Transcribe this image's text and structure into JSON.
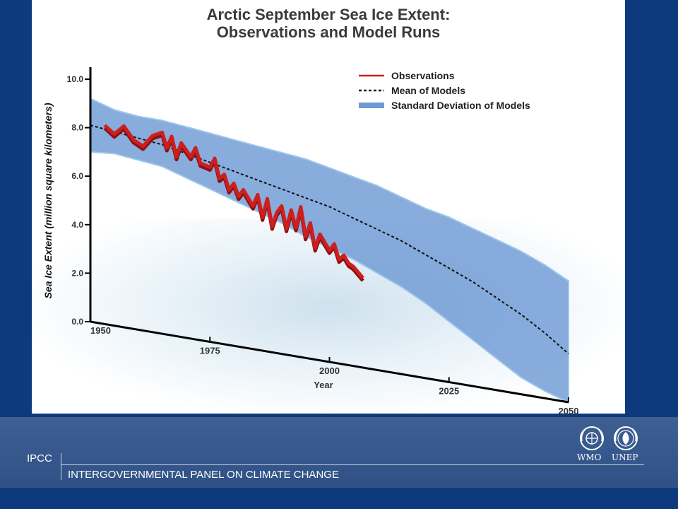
{
  "slide": {
    "title_line1": "Arctic September Sea Ice Extent:",
    "title_line2": "Observations and Model Runs"
  },
  "chart_data": {
    "type": "line",
    "title": "Arctic September Sea Ice Extent: Observations and Model Runs",
    "xlabel": "Year",
    "ylabel": "Sea Ice Extent (million square kilometers)",
    "xlim": [
      1950,
      2050
    ],
    "ylim": [
      0,
      10
    ],
    "x_ticks": [
      "1950",
      "1975",
      "2000",
      "2025",
      "2050"
    ],
    "y_ticks": [
      "0.0",
      "2.0",
      "4.0",
      "6.0",
      "8.0",
      "10.0"
    ],
    "legend_position": "top-right",
    "legend": [
      "Observations",
      "Mean of Models",
      "Standard Deviation of Models"
    ],
    "series": [
      {
        "name": "Observations",
        "color": "#cc1f1f",
        "style": "solid",
        "x": [
          1953,
          1955,
          1957,
          1959,
          1961,
          1963,
          1965,
          1966,
          1967,
          1968,
          1969,
          1971,
          1972,
          1973,
          1975,
          1976,
          1977,
          1978,
          1979,
          1980,
          1981,
          1982,
          1984,
          1985,
          1986,
          1987,
          1988,
          1989,
          1990,
          1991,
          1992,
          1993,
          1994,
          1995,
          1996,
          1997,
          1998,
          1999,
          2000,
          2001,
          2002,
          2003,
          2004,
          2005,
          2006,
          2007
        ],
        "y": [
          8.2,
          7.9,
          8.3,
          7.8,
          7.6,
          8.1,
          8.3,
          7.7,
          8.2,
          7.4,
          8.0,
          7.5,
          7.9,
          7.3,
          7.2,
          7.6,
          6.8,
          7.0,
          6.4,
          6.7,
          6.2,
          6.5,
          5.9,
          6.4,
          5.5,
          6.3,
          5.2,
          5.8,
          6.1,
          5.2,
          6.0,
          5.3,
          6.2,
          5.0,
          5.6,
          4.6,
          5.2,
          4.9,
          4.6,
          4.9,
          4.3,
          4.5,
          4.2,
          4.1,
          3.9,
          3.7
        ]
      },
      {
        "name": "Mean of Models",
        "color": "#111111",
        "style": "dashed",
        "x": [
          1950,
          1955,
          1960,
          1965,
          1970,
          1975,
          1980,
          1985,
          1990,
          1995,
          2000,
          2005,
          2010,
          2015,
          2020,
          2025,
          2030,
          2035,
          2040,
          2045,
          2050
        ],
        "y": [
          8.1,
          8.0,
          7.9,
          7.8,
          7.6,
          7.4,
          7.2,
          7.0,
          6.8,
          6.6,
          6.4,
          6.1,
          5.8,
          5.5,
          5.1,
          4.7,
          4.3,
          3.8,
          3.3,
          2.7,
          2.0
        ]
      },
      {
        "name": "Standard Deviation of Models",
        "color": "#6e9ad4",
        "style": "band",
        "x": [
          1950,
          1955,
          1960,
          1965,
          1970,
          1975,
          1980,
          1985,
          1990,
          1995,
          2000,
          2005,
          2010,
          2015,
          2020,
          2025,
          2030,
          2035,
          2040,
          2045,
          2050
        ],
        "upper": [
          9.2,
          8.9,
          8.8,
          8.8,
          8.7,
          8.6,
          8.5,
          8.4,
          8.3,
          8.2,
          8.0,
          7.8,
          7.6,
          7.3,
          7.0,
          6.8,
          6.5,
          6.2,
          5.9,
          5.5,
          5.0
        ],
        "lower": [
          7.0,
          7.1,
          7.0,
          6.9,
          6.6,
          6.3,
          6.0,
          5.7,
          5.4,
          5.0,
          4.7,
          4.4,
          4.0,
          3.6,
          3.1,
          2.5,
          1.9,
          1.3,
          0.7,
          0.3,
          0.0
        ]
      }
    ]
  },
  "footer": {
    "ipcc": "IPCC",
    "org_name": "INTERGOVERNMENTAL PANEL ON CLIMATE CHANGE",
    "wmo": "WMO",
    "unep": "UNEP"
  }
}
